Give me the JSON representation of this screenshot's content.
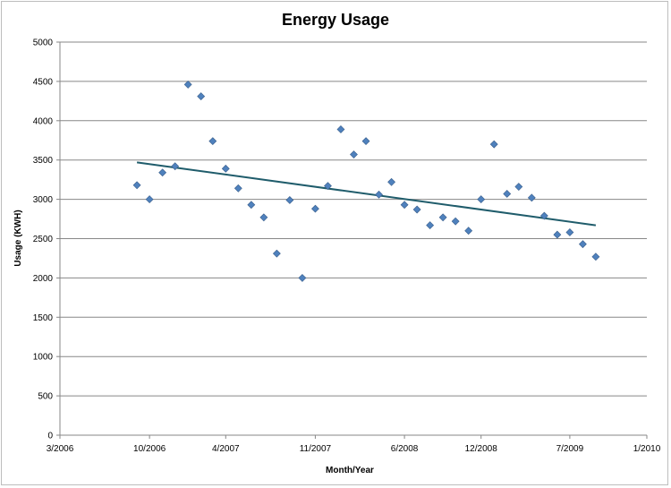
{
  "chart_data": {
    "type": "scatter",
    "title": "Energy Usage",
    "xlabel": "Month/Year",
    "ylabel": "Usage (KWH)",
    "xlim": [
      "2006-03-01",
      "2010-01-01"
    ],
    "ylim": [
      0,
      5000
    ],
    "x_ticks": [
      {
        "date": "2006-03-01",
        "label": "3/2006"
      },
      {
        "date": "2006-10-01",
        "label": "10/2006"
      },
      {
        "date": "2007-04-01",
        "label": "4/2007"
      },
      {
        "date": "2007-11-01",
        "label": "11/2007"
      },
      {
        "date": "2008-06-01",
        "label": "6/2008"
      },
      {
        "date": "2008-12-01",
        "label": "12/2008"
      },
      {
        "date": "2009-07-01",
        "label": "7/2009"
      },
      {
        "date": "2010-01-01",
        "label": "1/2010"
      }
    ],
    "y_ticks": [
      0,
      500,
      1000,
      1500,
      2000,
      2500,
      3000,
      3500,
      4000,
      4500,
      5000
    ],
    "grid": "horizontal",
    "legend": "none",
    "series": [
      {
        "x": [
          "2006-09-01",
          "2006-10-01",
          "2006-11-01",
          "2006-12-01",
          "2007-01-01",
          "2007-02-01",
          "2007-03-01",
          "2007-04-01",
          "2007-05-01",
          "2007-06-01",
          "2007-07-01",
          "2007-08-01",
          "2007-09-01",
          "2007-10-01",
          "2007-11-01",
          "2007-12-01",
          "2008-01-01",
          "2008-02-01",
          "2008-03-01",
          "2008-04-01",
          "2008-05-01",
          "2008-06-01",
          "2008-07-01",
          "2008-08-01",
          "2008-09-01",
          "2008-10-01",
          "2008-11-01",
          "2008-12-01",
          "2009-01-01",
          "2009-02-01",
          "2009-03-01",
          "2009-04-01",
          "2009-05-01",
          "2009-06-01",
          "2009-07-01",
          "2009-08-01",
          "2009-09-01"
        ],
        "y": [
          3180,
          3000,
          3340,
          3420,
          4460,
          4310,
          3740,
          3390,
          3140,
          2930,
          2770,
          2310,
          2990,
          2000,
          2880,
          3170,
          3890,
          3570,
          3740,
          3060,
          3220,
          2930,
          2870,
          2670,
          2770,
          2720,
          2600,
          3000,
          3700,
          3070,
          3160,
          3020,
          2790,
          2550,
          2580,
          2430,
          2270
        ]
      }
    ],
    "trendline": {
      "type": "linear",
      "x": [
        "2006-09-01",
        "2009-09-01"
      ],
      "y": [
        3470,
        2670
      ]
    },
    "colors": {
      "marker": "#4F81BD",
      "marker_edge": "#385D8A",
      "trendline": "#1F5C6B",
      "grid": "#878787",
      "axis": "#878787"
    }
  }
}
